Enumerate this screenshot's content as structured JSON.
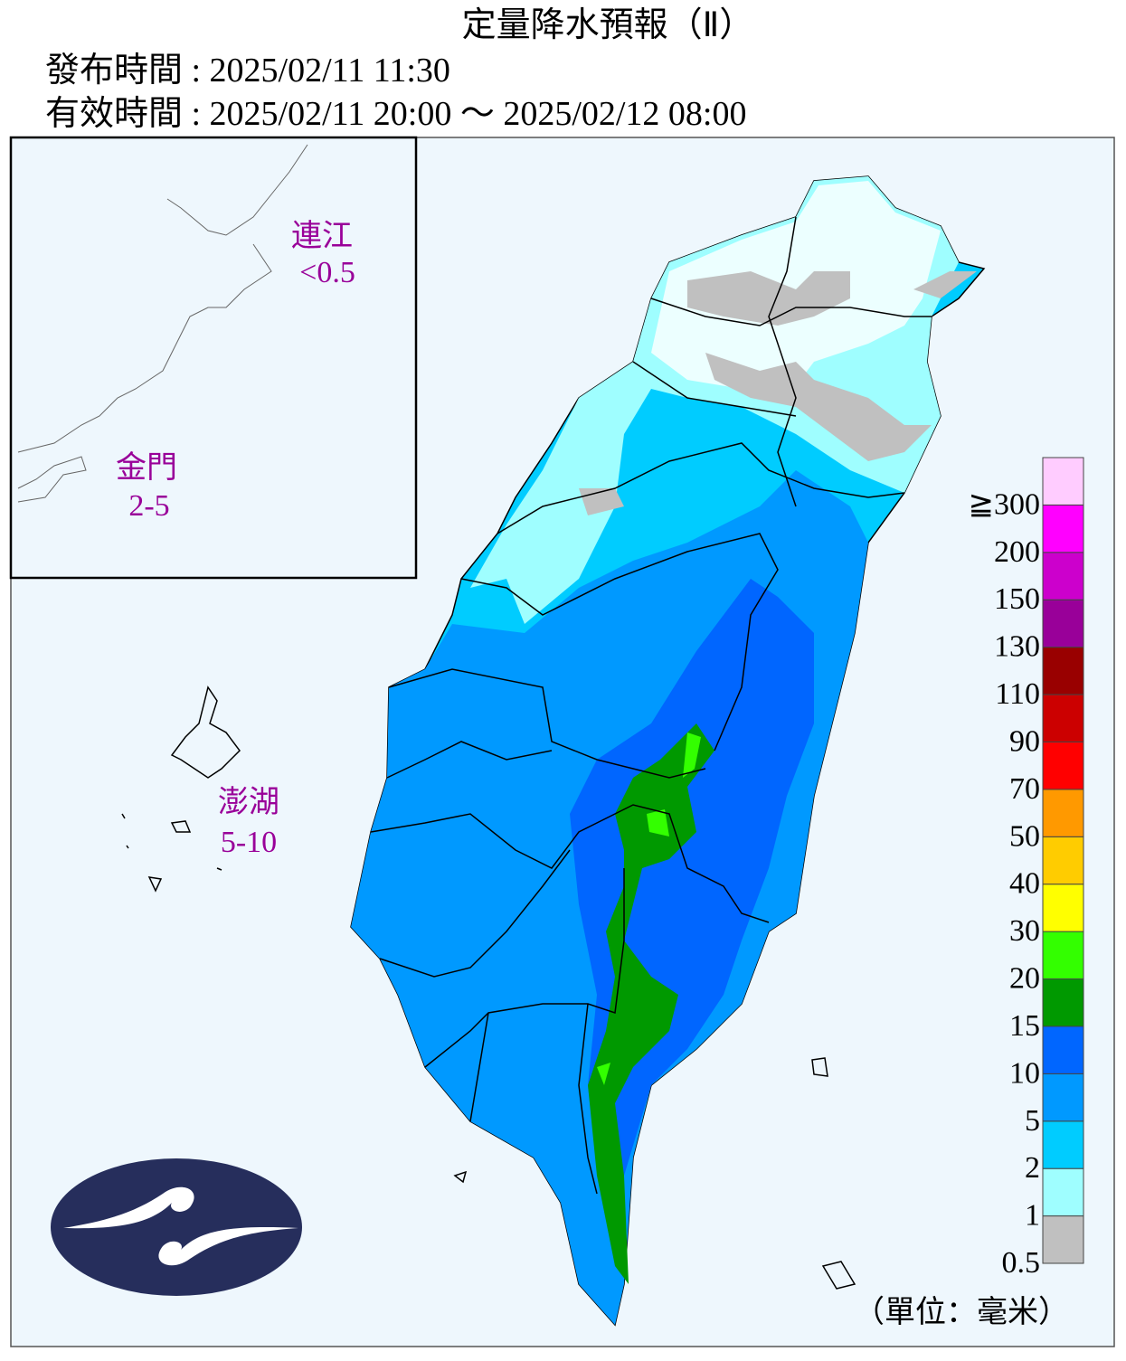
{
  "header": {
    "title": "定量降水預報（Ⅱ）",
    "issue_label": "發布時間 : 2025/02/11 11:30",
    "valid_label": "有效時間 : 2025/02/11 20:00 ～ 2025/02/12 08:00"
  },
  "islands": [
    {
      "name": "連江",
      "value": "<0.5"
    },
    {
      "name": "金門",
      "value": "2-5"
    },
    {
      "name": "澎湖",
      "value": "5-10"
    }
  ],
  "legend": {
    "unit": "（單位：毫米）",
    "levels": [
      {
        "label": "0.5",
        "color": "#c0c0c0"
      },
      {
        "label": "1",
        "color": "#9ffeff"
      },
      {
        "label": "2",
        "color": "#00ccff"
      },
      {
        "label": "5",
        "color": "#0099ff"
      },
      {
        "label": "10",
        "color": "#0066ff"
      },
      {
        "label": "15",
        "color": "#009900"
      },
      {
        "label": "20",
        "color": "#33ff00"
      },
      {
        "label": "30",
        "color": "#ffff00"
      },
      {
        "label": "40",
        "color": "#ffcc00"
      },
      {
        "label": "50",
        "color": "#ff9900"
      },
      {
        "label": "70",
        "color": "#ff0000"
      },
      {
        "label": "90",
        "color": "#cc0000"
      },
      {
        "label": "110",
        "color": "#990000"
      },
      {
        "label": "130",
        "color": "#990099"
      },
      {
        "label": "150",
        "color": "#cc00cc"
      },
      {
        "label": "200",
        "color": "#ff00ff"
      },
      {
        "label": "≧300",
        "color": "#ffccff"
      }
    ]
  }
}
